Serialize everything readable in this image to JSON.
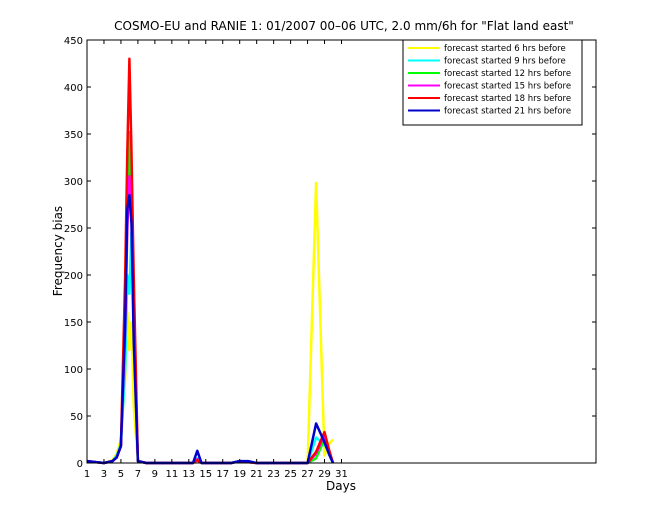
{
  "chart_data": {
    "type": "line",
    "title": "COSMO-EU and RANIE 1: 01/2007 00–06 UTC, 2.0 mm/6h for \"Flat land east\"",
    "xlabel": "Days",
    "ylabel": "Frequency bias",
    "xlim": [
      1,
      61
    ],
    "ylim": [
      0,
      450
    ],
    "xticks": [
      1,
      3,
      5,
      7,
      9,
      11,
      13,
      15,
      17,
      19,
      21,
      23,
      25,
      27,
      29,
      31
    ],
    "yticks": [
      0,
      50,
      100,
      150,
      200,
      250,
      300,
      350,
      400,
      450
    ],
    "grid": false,
    "legend_position": "top-right",
    "series": [
      {
        "name": "forecast started 6 hrs before",
        "color": "#ffff00",
        "points": [
          [
            1,
            2
          ],
          [
            2,
            1
          ],
          [
            3,
            0
          ],
          [
            4,
            3
          ],
          [
            4.5,
            10
          ],
          [
            5,
            25
          ],
          [
            5.5,
            90
          ],
          [
            5.75,
            160
          ],
          [
            6,
            120
          ],
          [
            6.25,
            150
          ],
          [
            6.5,
            60
          ],
          [
            7,
            2
          ],
          [
            8,
            0
          ],
          [
            13,
            0
          ],
          [
            13.5,
            0
          ],
          [
            14,
            3
          ],
          [
            14.5,
            0
          ],
          [
            18,
            0
          ],
          [
            19,
            2
          ],
          [
            20,
            1
          ],
          [
            21,
            0
          ],
          [
            26,
            0
          ],
          [
            27,
            0
          ],
          [
            28,
            298
          ],
          [
            29,
            8
          ],
          [
            29.5,
            20
          ],
          [
            30,
            25
          ]
        ]
      },
      {
        "name": "forecast started 9 hrs before",
        "color": "#00ffff",
        "points": [
          [
            1,
            2
          ],
          [
            2,
            1
          ],
          [
            3,
            0
          ],
          [
            4,
            2
          ],
          [
            4.5,
            8
          ],
          [
            5,
            20
          ],
          [
            5.5,
            100
          ],
          [
            5.75,
            200
          ],
          [
            6,
            180
          ],
          [
            6.25,
            245
          ],
          [
            6.5,
            150
          ],
          [
            7,
            2
          ],
          [
            8,
            0
          ],
          [
            13,
            0
          ],
          [
            13.5,
            0
          ],
          [
            14,
            5
          ],
          [
            14.5,
            0
          ],
          [
            18,
            0
          ],
          [
            19,
            2
          ],
          [
            20,
            1
          ],
          [
            21,
            0
          ],
          [
            26,
            0
          ],
          [
            27,
            0
          ],
          [
            28,
            27
          ],
          [
            29,
            20
          ],
          [
            29.5,
            12
          ],
          [
            30,
            0
          ]
        ]
      },
      {
        "name": "forecast started 12 hrs before",
        "color": "#00ff00",
        "points": [
          [
            1,
            2
          ],
          [
            2,
            1
          ],
          [
            3,
            0
          ],
          [
            4,
            2
          ],
          [
            4.5,
            6
          ],
          [
            5,
            18
          ],
          [
            5.5,
            150
          ],
          [
            5.75,
            260
          ],
          [
            6,
            352
          ],
          [
            6.25,
            260
          ],
          [
            6.5,
            150
          ],
          [
            7,
            2
          ],
          [
            8,
            0
          ],
          [
            13,
            0
          ],
          [
            13.5,
            0
          ],
          [
            14,
            4
          ],
          [
            14.5,
            0
          ],
          [
            18,
            0
          ],
          [
            19,
            2
          ],
          [
            20,
            1
          ],
          [
            21,
            0
          ],
          [
            26,
            0
          ],
          [
            27,
            0
          ],
          [
            28,
            5
          ],
          [
            29,
            25
          ],
          [
            29.5,
            10
          ],
          [
            30,
            0
          ]
        ]
      },
      {
        "name": "forecast started 15 hrs before",
        "color": "#ff00ff",
        "points": [
          [
            1,
            2
          ],
          [
            2,
            1
          ],
          [
            3,
            0
          ],
          [
            4,
            2
          ],
          [
            4.5,
            6
          ],
          [
            5,
            18
          ],
          [
            5.5,
            140
          ],
          [
            5.75,
            250
          ],
          [
            6,
            305
          ],
          [
            6.25,
            270
          ],
          [
            6.5,
            140
          ],
          [
            7,
            2
          ],
          [
            8,
            0
          ],
          [
            13,
            0
          ],
          [
            13.5,
            0
          ],
          [
            14,
            4
          ],
          [
            14.5,
            0
          ],
          [
            18,
            0
          ],
          [
            19,
            2
          ],
          [
            20,
            1
          ],
          [
            21,
            0
          ],
          [
            26,
            0
          ],
          [
            27,
            0
          ],
          [
            28,
            10
          ],
          [
            29,
            30
          ],
          [
            29.5,
            12
          ],
          [
            30,
            0
          ]
        ]
      },
      {
        "name": "forecast started 18 hrs before",
        "color": "#ff0000",
        "points": [
          [
            1,
            2
          ],
          [
            2,
            1
          ],
          [
            3,
            0
          ],
          [
            4,
            2
          ],
          [
            4.5,
            6
          ],
          [
            5,
            18
          ],
          [
            5.5,
            200
          ],
          [
            5.75,
            330
          ],
          [
            6,
            430
          ],
          [
            6.25,
            330
          ],
          [
            6.5,
            200
          ],
          [
            7,
            2
          ],
          [
            8,
            0
          ],
          [
            13,
            0
          ],
          [
            13.5,
            0
          ],
          [
            14,
            3
          ],
          [
            14.5,
            0
          ],
          [
            18,
            0
          ],
          [
            19,
            2
          ],
          [
            20,
            1
          ],
          [
            21,
            0
          ],
          [
            26,
            0
          ],
          [
            27,
            0
          ],
          [
            28,
            12
          ],
          [
            29,
            33
          ],
          [
            29.5,
            15
          ],
          [
            30,
            0
          ]
        ]
      },
      {
        "name": "forecast started 21 hrs before",
        "color": "#0000cc",
        "points": [
          [
            1,
            2
          ],
          [
            2,
            1
          ],
          [
            3,
            0
          ],
          [
            4,
            2
          ],
          [
            4.5,
            6
          ],
          [
            5,
            18
          ],
          [
            5.5,
            150
          ],
          [
            5.75,
            270
          ],
          [
            6,
            285
          ],
          [
            6.25,
            255
          ],
          [
            6.5,
            130
          ],
          [
            7,
            2
          ],
          [
            8,
            0
          ],
          [
            13,
            0
          ],
          [
            13.5,
            0
          ],
          [
            14,
            13
          ],
          [
            14.5,
            0
          ],
          [
            18,
            0
          ],
          [
            19,
            2
          ],
          [
            20,
            2
          ],
          [
            21,
            0
          ],
          [
            26,
            0
          ],
          [
            27,
            0
          ],
          [
            28,
            42
          ],
          [
            29,
            22
          ],
          [
            29.5,
            10
          ],
          [
            30,
            0
          ]
        ]
      }
    ]
  }
}
